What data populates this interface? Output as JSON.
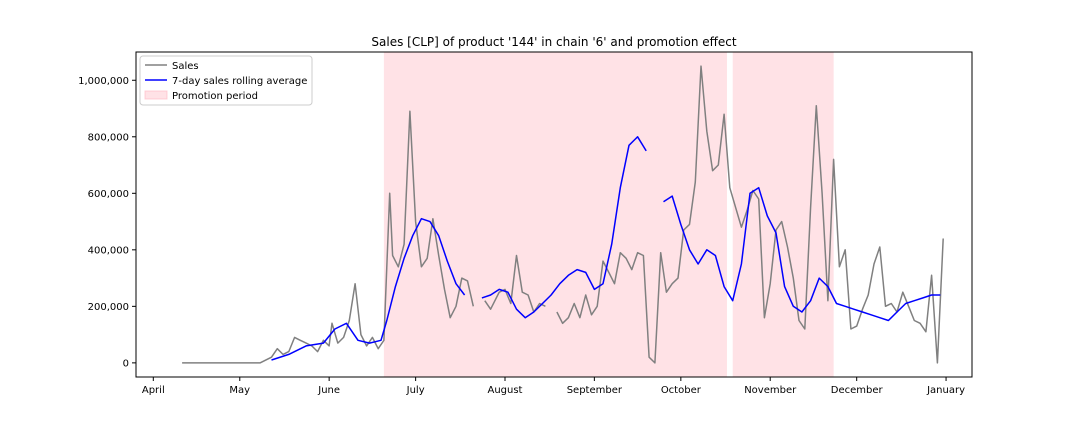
{
  "chart_data": {
    "type": "line",
    "title": "Sales [CLP] of product '144' in chain '6' and promotion effect",
    "xlabel": "",
    "ylabel": "",
    "x_ticks": [
      "April",
      "May",
      "June",
      "July",
      "August",
      "September",
      "October",
      "November",
      "December",
      "January"
    ],
    "y_ticks": [
      "0",
      "200,000",
      "400,000",
      "600,000",
      "800,000",
      "1,000,000"
    ],
    "ylim": [
      -50000,
      1100000
    ],
    "grid": false,
    "legend_position": "top-left",
    "promotion_periods": [
      {
        "start": "2021-06-20",
        "end": "2021-10-17"
      },
      {
        "start": "2021-10-19",
        "end": "2021-11-23"
      }
    ],
    "series": [
      {
        "name": "Sales",
        "color": "#808080",
        "x": [
          "2021-04-11",
          "2021-04-17",
          "2021-04-20",
          "2021-04-27",
          "2021-04-28",
          "2021-05-08",
          "2021-05-12",
          "2021-05-14",
          "2021-05-16",
          "2021-05-18",
          "2021-05-20",
          "2021-05-22",
          "2021-05-24",
          "2021-05-26",
          "2021-05-28",
          "2021-05-30",
          "2021-06-01",
          "2021-06-02",
          "2021-06-04",
          "2021-06-06",
          "2021-06-08",
          "2021-06-10",
          "2021-06-12",
          "2021-06-14",
          "2021-06-16",
          "2021-06-18",
          "2021-06-20",
          "2021-06-22",
          "2021-06-23",
          "2021-06-25",
          "2021-06-27",
          "2021-06-29",
          "2021-07-01",
          "2021-07-03",
          "2021-07-05",
          "2021-07-07",
          "2021-07-09",
          "2021-07-11",
          "2021-07-13",
          "2021-07-15",
          "2021-07-17",
          "2021-07-19",
          "2021-07-21",
          "2021-07-23",
          "2021-07-25",
          "2021-07-27",
          "2021-07-30",
          "2021-08-01",
          "2021-08-03",
          "2021-08-05",
          "2021-08-07",
          "2021-08-09",
          "2021-08-11",
          "2021-08-13",
          "2021-08-15",
          "2021-08-17",
          "2021-08-19",
          "2021-08-21",
          "2021-08-23",
          "2021-08-25",
          "2021-08-27",
          "2021-08-29",
          "2021-08-31",
          "2021-09-02",
          "2021-09-04",
          "2021-09-06",
          "2021-09-08",
          "2021-09-10",
          "2021-09-12",
          "2021-09-14",
          "2021-09-16",
          "2021-09-18",
          "2021-09-20",
          "2021-09-22",
          "2021-09-24",
          "2021-09-26",
          "2021-09-28",
          "2021-09-30",
          "2021-10-02",
          "2021-10-04",
          "2021-10-06",
          "2021-10-08",
          "2021-10-10",
          "2021-10-12",
          "2021-10-14",
          "2021-10-16",
          "2021-10-18",
          "2021-10-20",
          "2021-10-22",
          "2021-10-24",
          "2021-10-26",
          "2021-10-28",
          "2021-10-30",
          "2021-11-01",
          "2021-11-03",
          "2021-11-05",
          "2021-11-07",
          "2021-11-09",
          "2021-11-11",
          "2021-11-13",
          "2021-11-15",
          "2021-11-17",
          "2021-11-19",
          "2021-11-21",
          "2021-11-23",
          "2021-11-25",
          "2021-11-27",
          "2021-11-29",
          "2021-12-01",
          "2021-12-03",
          "2021-12-05",
          "2021-12-07",
          "2021-12-09",
          "2021-12-11",
          "2021-12-13",
          "2021-12-15",
          "2021-12-17",
          "2021-12-19",
          "2021-12-21",
          "2021-12-23",
          "2021-12-25",
          "2021-12-27",
          "2021-12-29",
          "2021-12-31"
        ],
        "y": [
          0,
          0,
          0,
          0,
          0,
          0,
          20000,
          50000,
          30000,
          40000,
          90000,
          80000,
          70000,
          60000,
          40000,
          80000,
          60000,
          140000,
          70000,
          90000,
          150000,
          280000,
          100000,
          60000,
          90000,
          50000,
          80000,
          600000,
          380000,
          340000,
          420000,
          890000,
          500000,
          340000,
          370000,
          510000,
          380000,
          260000,
          160000,
          200000,
          300000,
          290000,
          200000,
          null,
          220000,
          190000,
          250000,
          260000,
          210000,
          380000,
          250000,
          240000,
          180000,
          210000,
          200000,
          null,
          180000,
          140000,
          160000,
          210000,
          160000,
          240000,
          170000,
          200000,
          360000,
          320000,
          280000,
          390000,
          370000,
          330000,
          390000,
          380000,
          20000,
          0,
          390000,
          250000,
          280000,
          300000,
          470000,
          490000,
          640000,
          1050000,
          820000,
          680000,
          700000,
          880000,
          620000,
          550000,
          480000,
          540000,
          610000,
          580000,
          160000,
          280000,
          470000,
          500000,
          410000,
          300000,
          150000,
          120000,
          550000,
          910000,
          600000,
          220000,
          720000,
          340000,
          400000,
          120000,
          130000,
          190000,
          240000,
          350000,
          410000,
          200000,
          210000,
          180000,
          250000,
          200000,
          150000,
          140000,
          110000,
          310000,
          0,
          440000
        ],
        "segments_note": ""
      },
      {
        "name": "7-day sales rolling average",
        "color": "#0000ff",
        "x": [
          "2021-05-12",
          "2021-05-18",
          "2021-05-24",
          "2021-05-30",
          "2021-06-03",
          "2021-06-07",
          "2021-06-11",
          "2021-06-15",
          "2021-06-19",
          "2021-06-21",
          "2021-06-24",
          "2021-06-27",
          "2021-06-30",
          "2021-07-03",
          "2021-07-06",
          "2021-07-09",
          "2021-07-12",
          "2021-07-15",
          "2021-07-18",
          "2021-07-21",
          "2021-07-24",
          "2021-07-27",
          "2021-07-30",
          "2021-08-02",
          "2021-08-05",
          "2021-08-08",
          "2021-08-11",
          "2021-08-14",
          "2021-08-17",
          "2021-08-20",
          "2021-08-23",
          "2021-08-26",
          "2021-08-29",
          "2021-09-01",
          "2021-09-04",
          "2021-09-07",
          "2021-09-10",
          "2021-09-13",
          "2021-09-16",
          "2021-09-19",
          "2021-09-22",
          "2021-09-25",
          "2021-09-28",
          "2021-10-01",
          "2021-10-04",
          "2021-10-07",
          "2021-10-10",
          "2021-10-13",
          "2021-10-16",
          "2021-10-19",
          "2021-10-22",
          "2021-10-25",
          "2021-10-28",
          "2021-10-31",
          "2021-11-03",
          "2021-11-06",
          "2021-11-09",
          "2021-11-12",
          "2021-11-15",
          "2021-11-18",
          "2021-11-21",
          "2021-11-24",
          "2021-11-27",
          "2021-11-30",
          "2021-12-03",
          "2021-12-06",
          "2021-12-09",
          "2021-12-12",
          "2021-12-15",
          "2021-12-18",
          "2021-12-21",
          "2021-12-24",
          "2021-12-27",
          "2021-12-30"
        ],
        "y": [
          10000,
          30000,
          60000,
          70000,
          120000,
          140000,
          80000,
          70000,
          80000,
          150000,
          270000,
          370000,
          450000,
          510000,
          500000,
          450000,
          360000,
          280000,
          240000,
          null,
          230000,
          240000,
          260000,
          250000,
          190000,
          160000,
          180000,
          210000,
          240000,
          280000,
          310000,
          330000,
          320000,
          260000,
          280000,
          420000,
          620000,
          770000,
          800000,
          750000,
          null,
          570000,
          590000,
          490000,
          400000,
          350000,
          400000,
          380000,
          270000,
          220000,
          350000,
          600000,
          620000,
          520000,
          460000,
          270000,
          200000,
          180000,
          220000,
          300000,
          270000,
          210000,
          200000,
          190000,
          180000,
          170000,
          160000,
          150000,
          180000,
          210000,
          220000,
          230000,
          240000,
          240000
        ]
      }
    ]
  },
  "legend": {
    "sales_label": "Sales",
    "rolling_label": "7-day sales rolling average",
    "promo_label": "Promotion period"
  }
}
